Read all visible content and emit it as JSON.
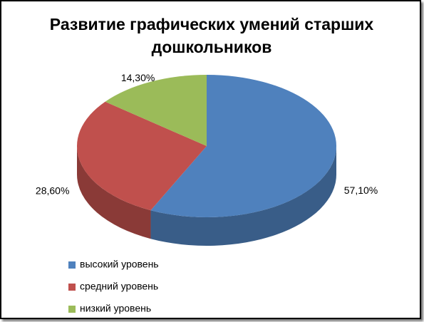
{
  "chart_data": {
    "type": "pie3d",
    "title": "Развитие графических умений старших дошкольников",
    "categories": [
      "высокий уровень",
      "средний уровень",
      "низкий уровень"
    ],
    "values": [
      57.1,
      28.6,
      14.3
    ],
    "value_labels": [
      "57,10%",
      "28,60%",
      "14,30%"
    ],
    "colors": [
      "#4f81bd",
      "#c0504d",
      "#9bbb59"
    ],
    "legend": "bottom-left"
  }
}
